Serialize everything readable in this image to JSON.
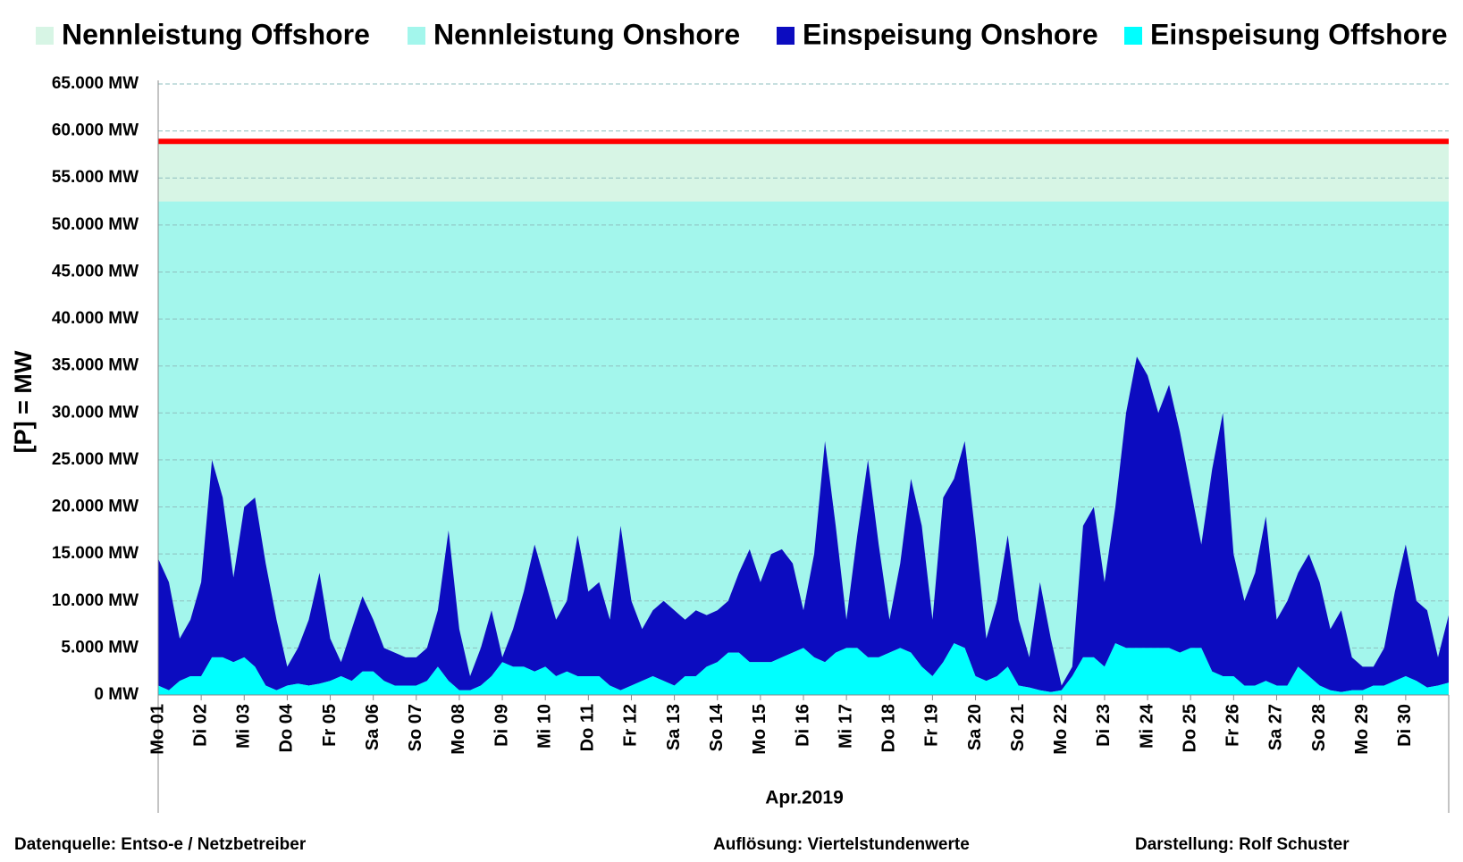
{
  "chart_data": {
    "type": "stacked_area",
    "xlabel": "Apr.2019",
    "ylabel": "[P] = MW",
    "footer": [
      "Datenquelle:  Entso-e  / Netzbetreiber",
      "Auflösung:  Viertelstundenwerte",
      "Darstellung: Rolf Schuster"
    ],
    "xlim": [
      0,
      30
    ],
    "ylim": [
      0,
      65000
    ],
    "xticks": [
      {
        "value": 0,
        "label": "Mo 01"
      },
      {
        "value": 1,
        "label": "Di 02"
      },
      {
        "value": 2,
        "label": "Mi 03"
      },
      {
        "value": 3,
        "label": "Do 04"
      },
      {
        "value": 4,
        "label": "Fr 05"
      },
      {
        "value": 5,
        "label": "Sa 06"
      },
      {
        "value": 6,
        "label": "So 07"
      },
      {
        "value": 7,
        "label": "Mo 08"
      },
      {
        "value": 8,
        "label": "Di 09"
      },
      {
        "value": 9,
        "label": "Mi 10"
      },
      {
        "value": 10,
        "label": "Do 11"
      },
      {
        "value": 11,
        "label": "Fr 12"
      },
      {
        "value": 12,
        "label": "Sa 13"
      },
      {
        "value": 13,
        "label": "So 14"
      },
      {
        "value": 14,
        "label": "Mo 15"
      },
      {
        "value": 15,
        "label": "Di 16"
      },
      {
        "value": 16,
        "label": "Mi 17"
      },
      {
        "value": 17,
        "label": "Do 18"
      },
      {
        "value": 18,
        "label": "Fr 19"
      },
      {
        "value": 19,
        "label": "Sa 20"
      },
      {
        "value": 20,
        "label": "So 21"
      },
      {
        "value": 21,
        "label": "Mo 22"
      },
      {
        "value": 22,
        "label": "Di 23"
      },
      {
        "value": 23,
        "label": "Mi 24"
      },
      {
        "value": 24,
        "label": "Do 25"
      },
      {
        "value": 25,
        "label": "Fr 26"
      },
      {
        "value": 26,
        "label": "Sa 27"
      },
      {
        "value": 27,
        "label": "So 28"
      },
      {
        "value": 28,
        "label": "Mo 29"
      },
      {
        "value": 29,
        "label": "Di 30"
      }
    ],
    "yticks": [
      {
        "value": 0,
        "label": "0 MW"
      },
      {
        "value": 5000,
        "label": "5.000 MW"
      },
      {
        "value": 10000,
        "label": "10.000 MW"
      },
      {
        "value": 15000,
        "label": "15.000 MW"
      },
      {
        "value": 20000,
        "label": "20.000 MW"
      },
      {
        "value": 25000,
        "label": "25.000 MW"
      },
      {
        "value": 30000,
        "label": "30.000 MW"
      },
      {
        "value": 35000,
        "label": "35.000 MW"
      },
      {
        "value": 40000,
        "label": "40.000 MW"
      },
      {
        "value": 45000,
        "label": "45.000 MW"
      },
      {
        "value": 50000,
        "label": "50.000 MW"
      },
      {
        "value": 55000,
        "label": "55.000 MW"
      },
      {
        "value": 60000,
        "label": "60.000 MW"
      },
      {
        "value": 65000,
        "label": "65.000 MW"
      }
    ],
    "grid": true,
    "total_capacity_line_color": "#ff0000",
    "x": [
      0,
      0.25,
      0.5,
      0.75,
      1,
      1.25,
      1.5,
      1.75,
      2,
      2.25,
      2.5,
      2.75,
      3,
      3.25,
      3.5,
      3.75,
      4,
      4.25,
      4.5,
      4.75,
      5,
      5.25,
      5.5,
      5.75,
      6,
      6.25,
      6.5,
      6.75,
      7,
      7.25,
      7.5,
      7.75,
      8,
      8.25,
      8.5,
      8.75,
      9,
      9.25,
      9.5,
      9.75,
      10,
      10.25,
      10.5,
      10.75,
      11,
      11.25,
      11.5,
      11.75,
      12,
      12.25,
      12.5,
      12.75,
      13,
      13.25,
      13.5,
      13.75,
      14,
      14.25,
      14.5,
      14.75,
      15,
      15.25,
      15.5,
      15.75,
      16,
      16.25,
      16.5,
      16.75,
      17,
      17.25,
      17.5,
      17.75,
      18,
      18.25,
      18.5,
      18.75,
      19,
      19.25,
      19.5,
      19.75,
      20,
      20.25,
      20.5,
      20.75,
      21,
      21.25,
      21.5,
      21.75,
      22,
      22.25,
      22.5,
      22.75,
      23,
      23.25,
      23.5,
      23.75,
      24,
      24.25,
      24.5,
      24.75,
      25,
      25.25,
      25.5,
      25.75,
      26,
      26.25,
      26.5,
      26.75,
      27,
      27.25,
      27.5,
      27.75,
      28,
      28.25,
      28.5,
      28.75,
      29,
      29.25,
      29.5,
      29.75,
      30
    ],
    "series": [
      {
        "name": "Nennleistung Offshore",
        "color": "#d7f5e5",
        "value": 6400
      },
      {
        "name": "Nennleistung Onshore",
        "color": "#a3f6ec",
        "value": 52500
      },
      {
        "name": "Einspeisung Onshore",
        "color": "#0c0cc0",
        "values": [
          13500,
          11500,
          4500,
          6000,
          10000,
          21000,
          17000,
          9000,
          16000,
          18000,
          13000,
          7500,
          2000,
          3800,
          7000,
          11800,
          4500,
          1500,
          5500,
          8000,
          5500,
          3500,
          3500,
          3000,
          3000,
          3500,
          6000,
          16000,
          6500,
          1500,
          4000,
          7000,
          500,
          4000,
          8000,
          13500,
          9000,
          6000,
          7500,
          15000,
          9000,
          10000,
          7000,
          17500,
          9000,
          5500,
          7000,
          8500,
          8000,
          6000,
          7000,
          5500,
          5500,
          5500,
          8500,
          12000,
          8500,
          11500,
          11500,
          9500,
          4000,
          11000,
          23500,
          13500,
          3000,
          12000,
          21000,
          12000,
          3500,
          9000,
          18500,
          15000,
          6000,
          17500,
          17500,
          22000,
          15000,
          4500,
          8000,
          14000,
          7000,
          3200,
          11500,
          5700,
          500,
          1000,
          14000,
          16000,
          9000,
          14500,
          25000,
          31000,
          29000,
          25000,
          28000,
          23500,
          17000,
          11000,
          21500,
          28000,
          13000,
          9000,
          12000,
          17500,
          7000,
          9000,
          10000,
          13000,
          11000,
          6500,
          8700,
          3500,
          2500,
          2000,
          4000,
          9500,
          14000,
          8500,
          8200,
          3000,
          7200
        ]
      },
      {
        "name": "Einspeisung Offshore",
        "color": "#00ffff",
        "values": [
          1000,
          500,
          1500,
          2000,
          2000,
          4000,
          4000,
          3500,
          4000,
          3000,
          1000,
          500,
          1000,
          1200,
          1000,
          1200,
          1500,
          2000,
          1500,
          2500,
          2500,
          1500,
          1000,
          1000,
          1000,
          1500,
          3000,
          1500,
          500,
          500,
          1000,
          2000,
          3500,
          3000,
          3000,
          2500,
          3000,
          2000,
          2500,
          2000,
          2000,
          2000,
          1000,
          500,
          1000,
          1500,
          2000,
          1500,
          1000,
          2000,
          2000,
          3000,
          3500,
          4500,
          4500,
          3500,
          3500,
          3500,
          4000,
          4500,
          5000,
          4000,
          3500,
          4500,
          5000,
          5000,
          4000,
          4000,
          4500,
          5000,
          4500,
          3000,
          2000,
          3500,
          5500,
          5000,
          2000,
          1500,
          2000,
          3000,
          1000,
          800,
          500,
          300,
          500,
          2000,
          4000,
          4000,
          3000,
          5500,
          5000,
          5000,
          5000,
          5000,
          5000,
          4500,
          5000,
          5000,
          2500,
          2000,
          2000,
          1000,
          1000,
          1500,
          1000,
          1000,
          3000,
          2000,
          1000,
          500,
          300,
          500,
          500,
          1000,
          1000,
          1500,
          2000,
          1500,
          800,
          1000,
          1300
        ]
      }
    ]
  }
}
